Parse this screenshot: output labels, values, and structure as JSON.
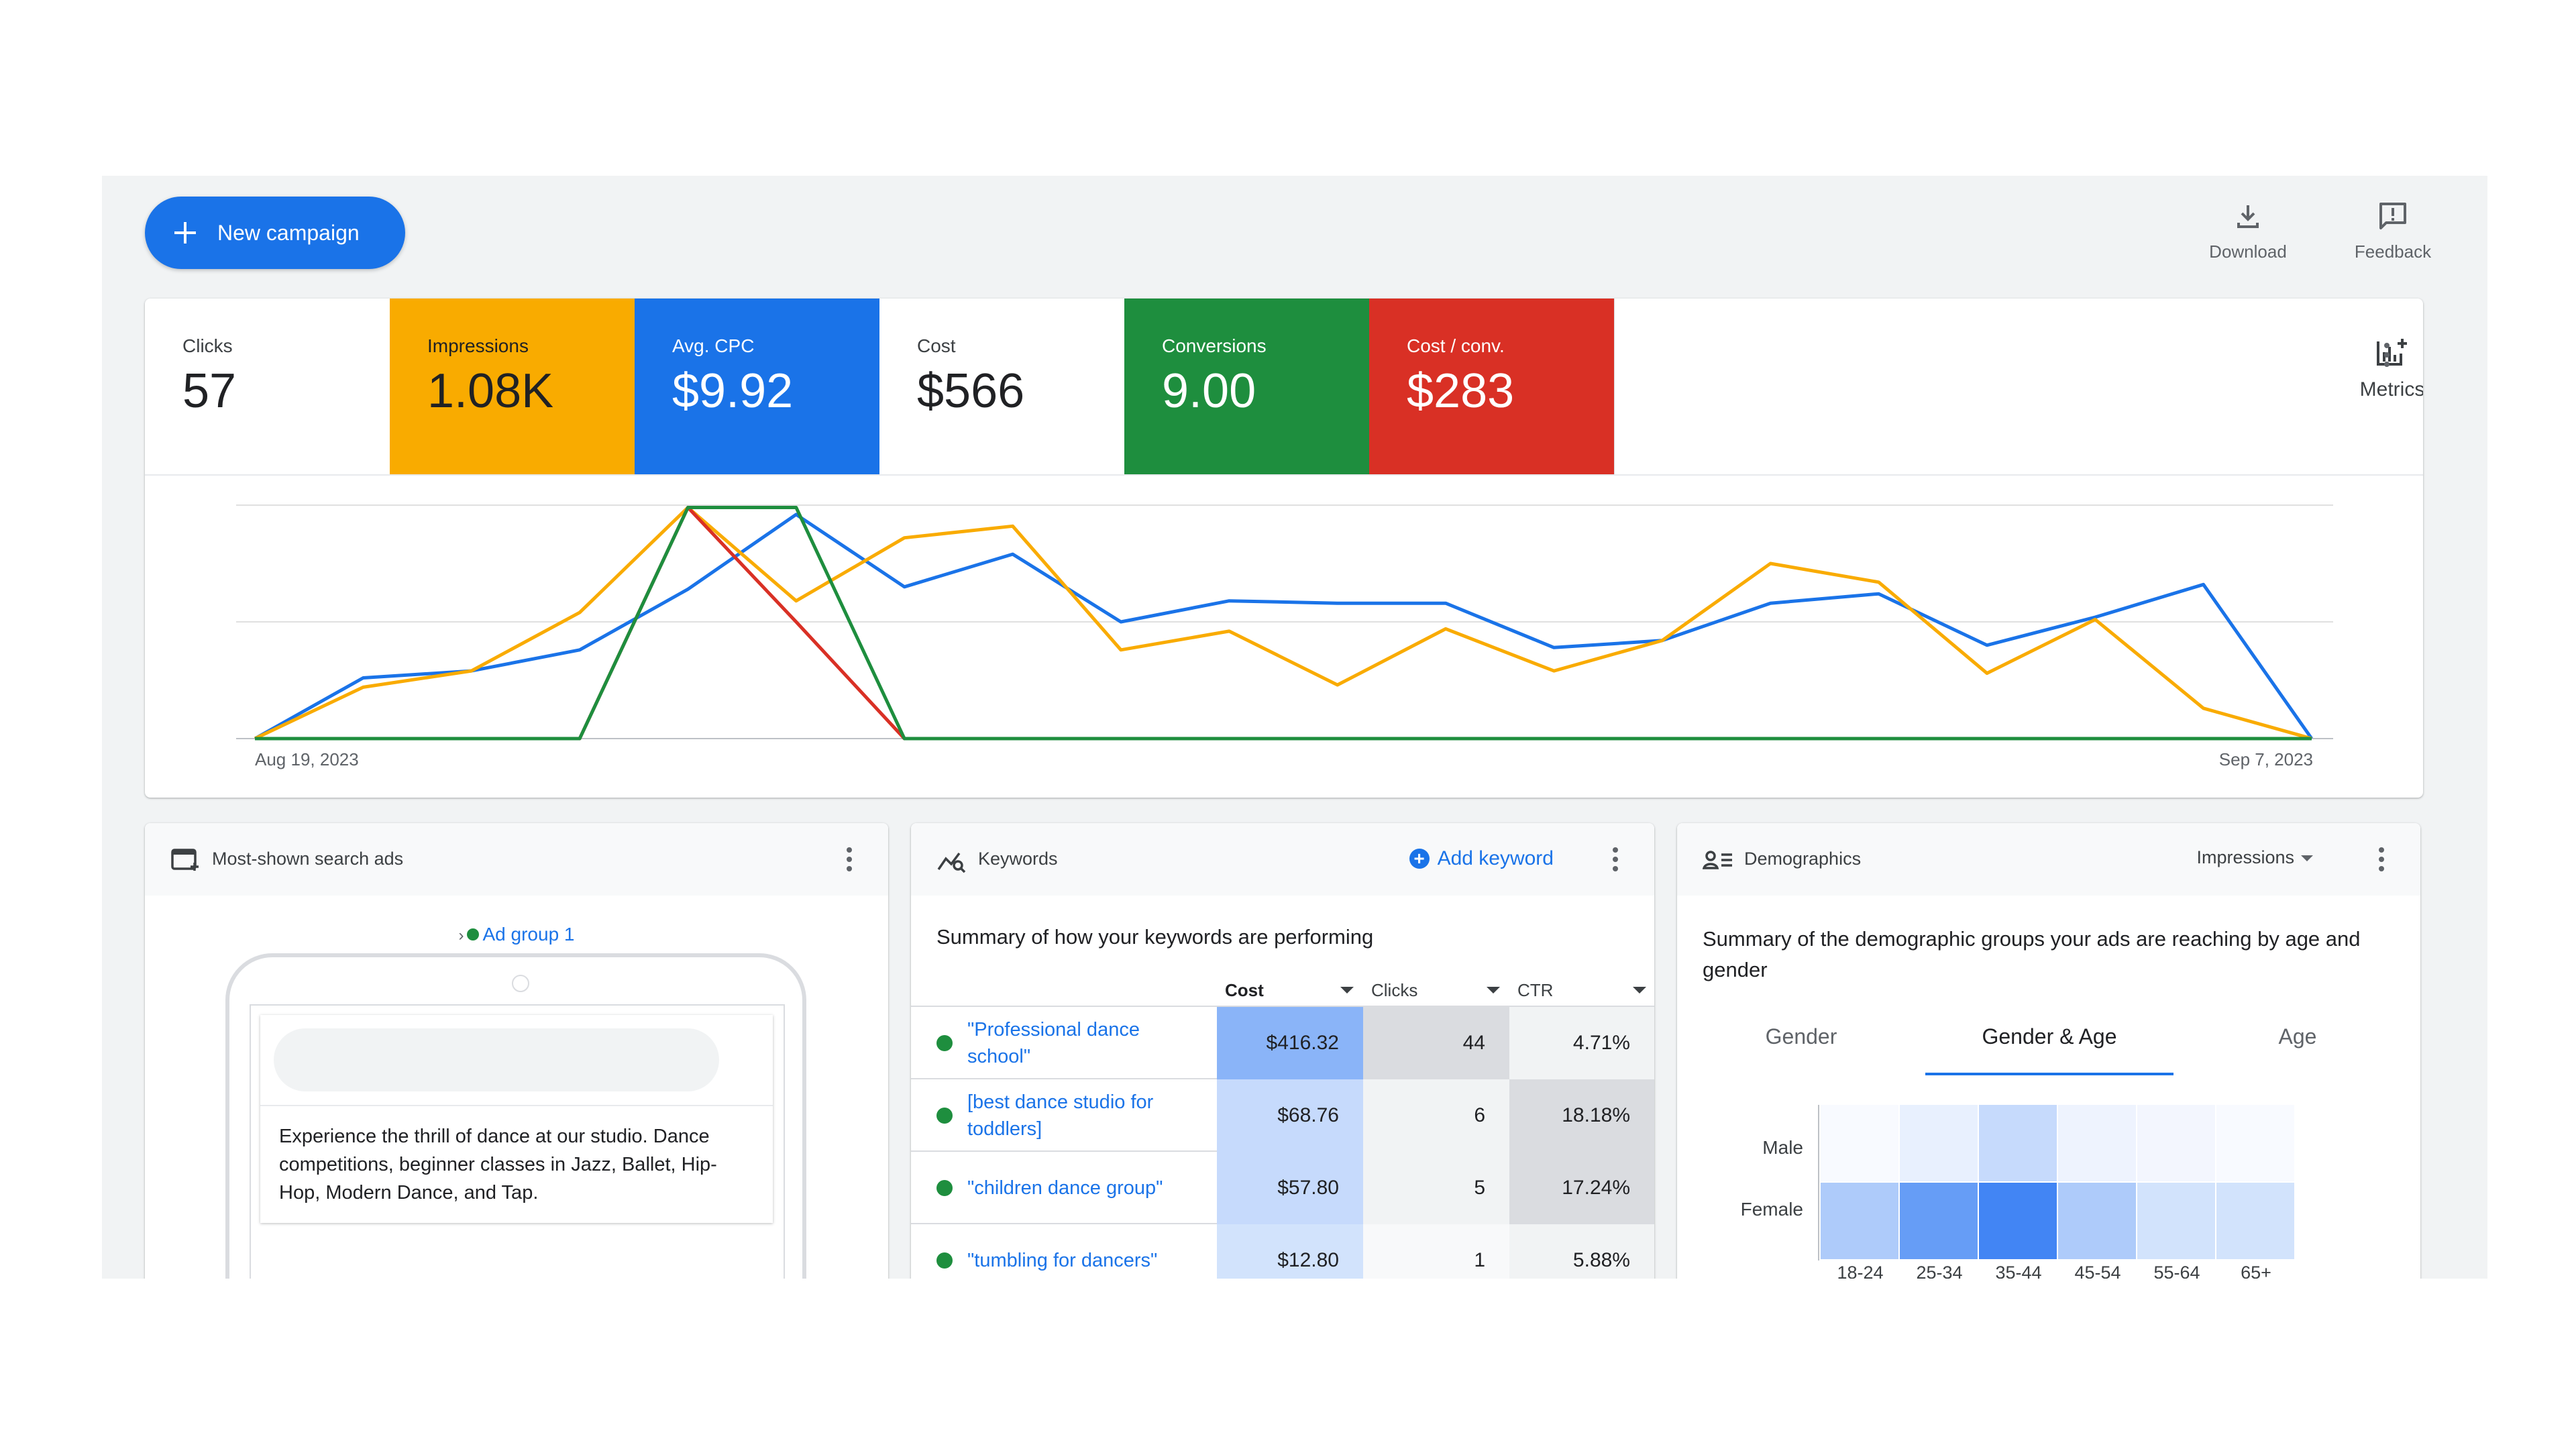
{
  "toolbar": {
    "new_campaign_label": "New campaign",
    "download_label": "Download",
    "feedback_label": "Feedback"
  },
  "scorecards": [
    {
      "label": "Clicks",
      "value": "57",
      "color": "#ffffff"
    },
    {
      "label": "Impressions",
      "value": "1.08K",
      "color": "#f9ab00"
    },
    {
      "label": "Avg. CPC",
      "value": "$9.92",
      "color": "#1a73e8"
    },
    {
      "label": "Cost",
      "value": "$566",
      "color": "#ffffff"
    },
    {
      "label": "Conversions",
      "value": "9.00",
      "color": "#1e8e3e"
    },
    {
      "label": "Cost / conv.",
      "value": "$283",
      "color": "#d93025"
    }
  ],
  "metrics_button_label": "Metrics",
  "chart_data": {
    "type": "line",
    "x_start_label": "Aug 19, 2023",
    "x_end_label": "Sep 7, 2023",
    "grid": true,
    "ylim": [
      0,
      100
    ],
    "series": [
      {
        "color": "#1a73e8",
        "values": [
          0,
          26,
          29,
          38,
          64,
          96,
          65,
          79,
          50,
          59,
          58,
          58,
          39,
          42,
          58,
          62,
          40,
          52,
          66,
          0
        ]
      },
      {
        "color": "#f9ab00",
        "values": [
          0,
          22,
          29,
          54,
          99,
          59,
          86,
          91,
          38,
          46,
          23,
          47,
          29,
          42,
          75,
          67,
          28,
          51,
          13,
          0
        ]
      },
      {
        "color": "#d93025",
        "values": [
          0,
          0,
          0,
          0,
          99,
          50,
          0,
          0,
          0,
          0,
          0,
          0,
          0,
          0,
          0,
          0,
          0,
          0,
          0,
          0
        ]
      },
      {
        "color": "#1e8e3e",
        "values": [
          0,
          0,
          0,
          0,
          99,
          99,
          0,
          0,
          0,
          0,
          0,
          0,
          0,
          0,
          0,
          0,
          0,
          0,
          0,
          0
        ]
      }
    ]
  },
  "ads_panel": {
    "title": "Most-shown search ads",
    "ad_group": "Ad group 1",
    "ad_text": "Experience the thrill of dance at our studio. Dance competitions, beginner classes in Jazz, Ballet, Hip-Hop, Modern Dance, and Tap."
  },
  "keywords_panel": {
    "title": "Keywords",
    "add_label": "Add keyword",
    "summary": "Summary of how your keywords are performing",
    "columns": [
      "Cost",
      "Clicks",
      "CTR"
    ],
    "rows": [
      {
        "keyword": "\"Professional dance school\"",
        "cost": "$416.32",
        "clicks": "44",
        "ctr": "4.71%",
        "cost_bg": "#8ab4f8",
        "clicks_bg": "#dadce0",
        "ctr_bg": "#f1f3f4"
      },
      {
        "keyword": "[best dance studio for toddlers]",
        "cost": "$68.76",
        "clicks": "6",
        "ctr": "18.18%",
        "cost_bg": "#c6dafc",
        "clicks_bg": "#f1f3f4",
        "ctr_bg": "#dadce0"
      },
      {
        "keyword": "\"children dance group\"",
        "cost": "$57.80",
        "clicks": "5",
        "ctr": "17.24%",
        "cost_bg": "#c6dafc",
        "clicks_bg": "#f1f3f4",
        "ctr_bg": "#dadce0"
      },
      {
        "keyword": "\"tumbling for dancers\"",
        "cost": "$12.80",
        "clicks": "1",
        "ctr": "5.88%",
        "cost_bg": "#d2e3fc",
        "clicks_bg": "#f8f9fa",
        "ctr_bg": "#f1f3f4"
      }
    ]
  },
  "demographics_panel": {
    "title": "Demographics",
    "metric_select": "Impressions",
    "summary": "Summary of the demographic groups your ads are reaching by age and gender",
    "tabs": [
      "Gender",
      "Gender & Age",
      "Age"
    ],
    "active_tab": 1,
    "rows": [
      "Male",
      "Female"
    ],
    "columns": [
      "18-24",
      "25-34",
      "35-44",
      "45-54",
      "55-64",
      "65+"
    ],
    "heat_colors": [
      [
        "#f8faff",
        "#e8f0fe",
        "#c6dafc",
        "#eef3fe",
        "#f3f6fe",
        "#f8faff"
      ],
      [
        "#aecbfa",
        "#669df6",
        "#4285f4",
        "#aecbfa",
        "#d2e3fc",
        "#d2e3fc"
      ]
    ]
  }
}
